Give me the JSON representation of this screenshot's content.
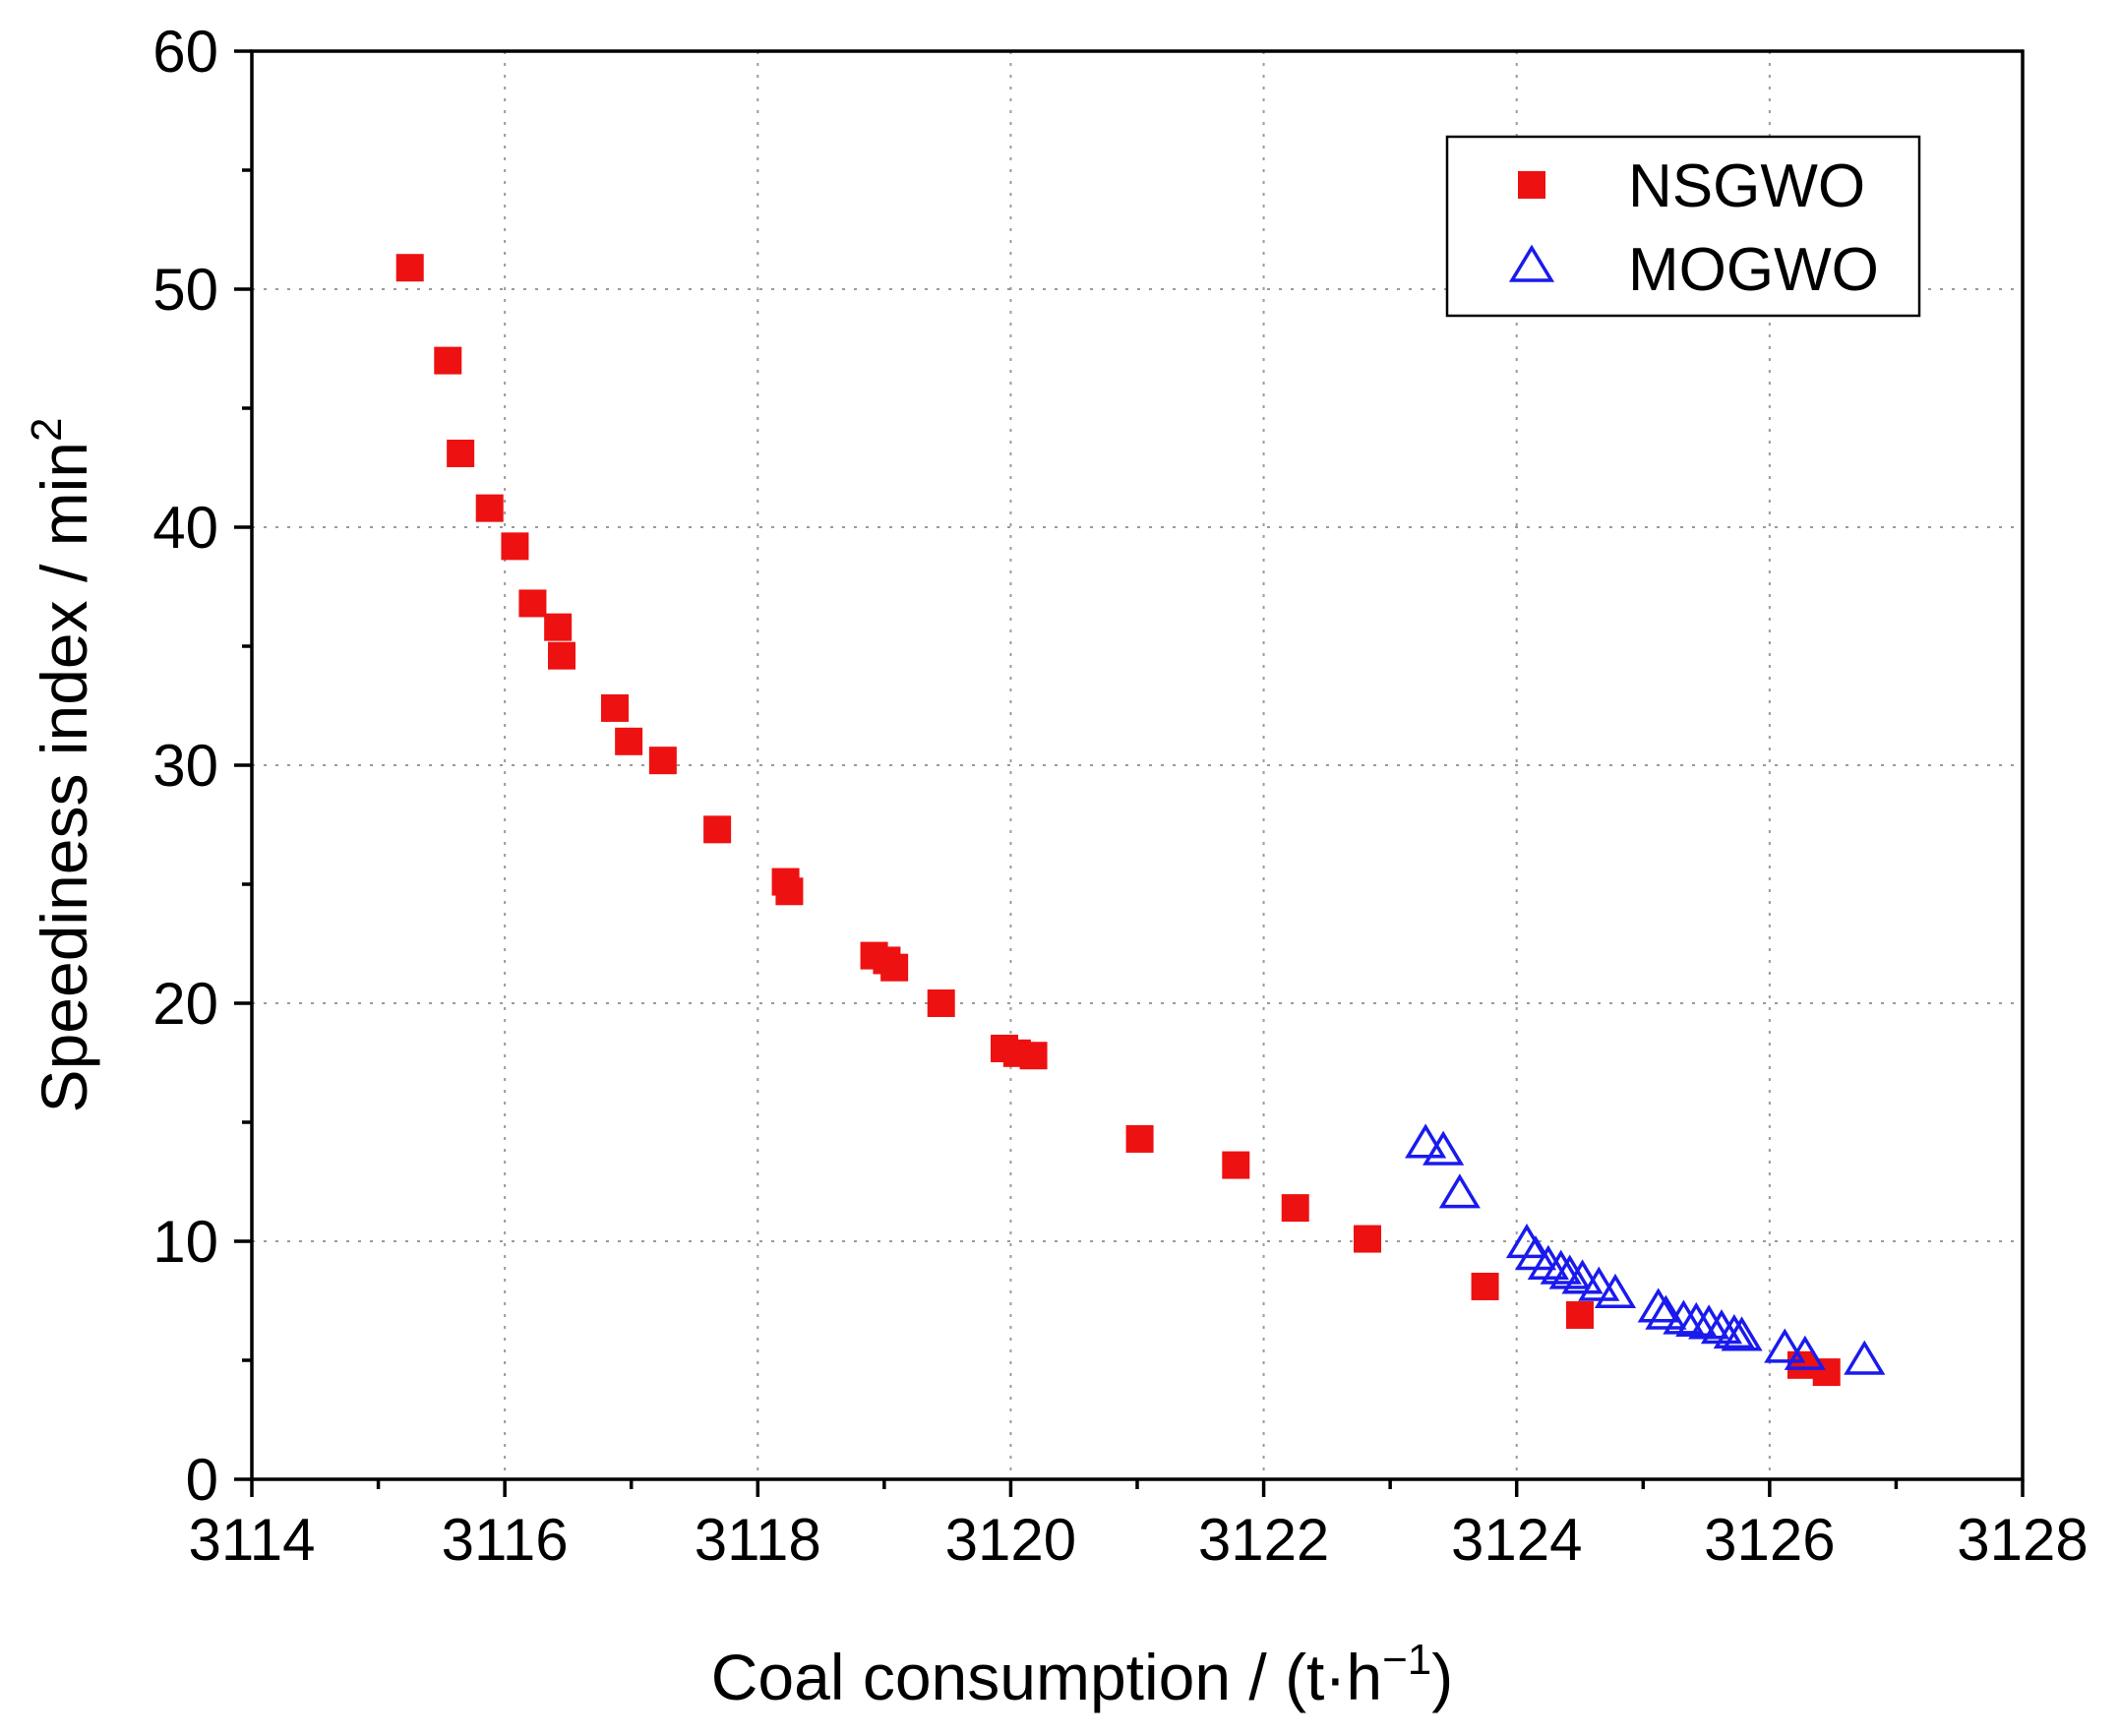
{
  "chart_data": {
    "type": "scatter",
    "title": "",
    "xlabel": "Coal consumption / (t·h",
    "xlabel_sup": "−1",
    "xlabel_tail": ")",
    "ylabel": "Speediness index / min",
    "ylabel_sup": "2",
    "xlim": [
      3114,
      3128
    ],
    "ylim": [
      0,
      60
    ],
    "x_ticks": [
      3114,
      3116,
      3118,
      3120,
      3122,
      3124,
      3126,
      3128
    ],
    "y_ticks": [
      0,
      10,
      20,
      30,
      40,
      50,
      60
    ],
    "grid": true,
    "legend_position": "top-right",
    "series": [
      {
        "name": "NSGWO",
        "marker": "filled-square",
        "color": "#ee1111",
        "points": [
          [
            3115.25,
            50.9
          ],
          [
            3115.55,
            47.0
          ],
          [
            3115.65,
            43.1
          ],
          [
            3115.88,
            40.8
          ],
          [
            3116.08,
            39.2
          ],
          [
            3116.22,
            36.8
          ],
          [
            3116.42,
            35.8
          ],
          [
            3116.45,
            34.6
          ],
          [
            3116.87,
            32.4
          ],
          [
            3116.98,
            31.0
          ],
          [
            3117.25,
            30.2
          ],
          [
            3117.68,
            27.3
          ],
          [
            3118.22,
            25.1
          ],
          [
            3118.25,
            24.7
          ],
          [
            3118.92,
            22.0
          ],
          [
            3119.02,
            21.8
          ],
          [
            3119.08,
            21.5
          ],
          [
            3119.45,
            20.0
          ],
          [
            3119.95,
            18.1
          ],
          [
            3120.05,
            17.9
          ],
          [
            3120.18,
            17.8
          ],
          [
            3121.02,
            14.3
          ],
          [
            3121.78,
            13.2
          ],
          [
            3122.25,
            11.4
          ],
          [
            3122.82,
            10.1
          ],
          [
            3123.75,
            8.1
          ],
          [
            3124.5,
            6.9
          ],
          [
            3126.25,
            4.8
          ],
          [
            3126.45,
            4.5
          ]
        ]
      },
      {
        "name": "MOGWO",
        "marker": "open-triangle",
        "color": "#1a1aee",
        "points": [
          [
            3123.28,
            14.1
          ],
          [
            3123.42,
            13.8
          ],
          [
            3123.55,
            12.0
          ],
          [
            3124.08,
            9.9
          ],
          [
            3124.15,
            9.4
          ],
          [
            3124.25,
            9.0
          ],
          [
            3124.35,
            8.8
          ],
          [
            3124.42,
            8.6
          ],
          [
            3124.52,
            8.4
          ],
          [
            3124.65,
            8.1
          ],
          [
            3124.78,
            7.8
          ],
          [
            3125.12,
            7.2
          ],
          [
            3125.18,
            6.9
          ],
          [
            3125.32,
            6.7
          ],
          [
            3125.42,
            6.6
          ],
          [
            3125.52,
            6.5
          ],
          [
            3125.62,
            6.3
          ],
          [
            3125.72,
            6.1
          ],
          [
            3125.78,
            6.0
          ],
          [
            3126.12,
            5.5
          ],
          [
            3126.28,
            5.2
          ],
          [
            3126.75,
            5.0
          ]
        ]
      }
    ]
  }
}
